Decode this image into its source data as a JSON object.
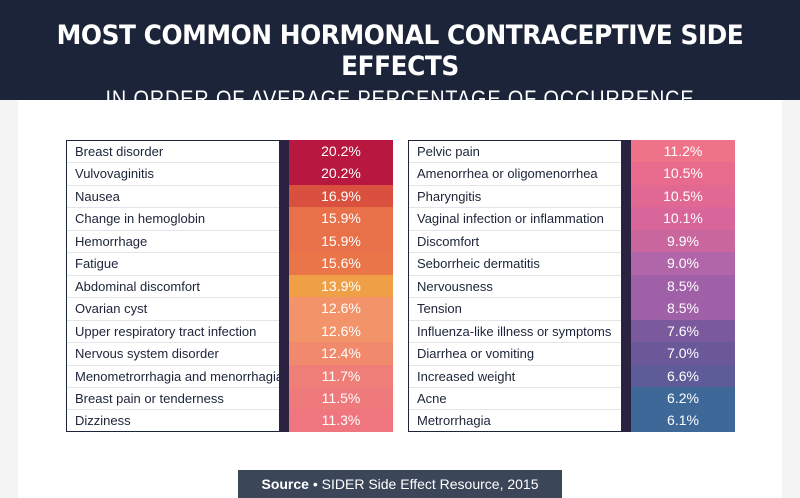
{
  "header": {
    "title": "MOST COMMON HORMONAL CONTRACEPTIVE SIDE EFFECTS",
    "subtitle": "IN ORDER OF AVERAGE PERCENTAGE OF OCCURRENCE"
  },
  "chart_data": {
    "type": "table",
    "title": "MOST COMMON HORMONAL CONTRACEPTIVE SIDE EFFECTS",
    "subtitle": "IN ORDER OF AVERAGE PERCENTAGE OF OCCURRENCE",
    "columns": [
      {
        "rows": [
          {
            "label": "Breast disorder",
            "value": "20.2%",
            "color": "#b8173f"
          },
          {
            "label": "Vulvovaginitis",
            "value": "20.2%",
            "color": "#b8173f"
          },
          {
            "label": "Nausea",
            "value": "16.9%",
            "color": "#d9503f"
          },
          {
            "label": "Change in hemoglobin",
            "value": "15.9%",
            "color": "#e8714a"
          },
          {
            "label": "Hemorrhage",
            "value": "15.9%",
            "color": "#e8714a"
          },
          {
            "label": "Fatigue",
            "value": "15.6%",
            "color": "#ea7549"
          },
          {
            "label": "Abdominal discomfort",
            "value": "13.9%",
            "color": "#efa047"
          },
          {
            "label": "Ovarian cyst",
            "value": "12.6%",
            "color": "#f3936a"
          },
          {
            "label": "Upper respiratory tract infection",
            "value": "12.6%",
            "color": "#f3936a"
          },
          {
            "label": "Nervous system disorder",
            "value": "12.4%",
            "color": "#f18a6c"
          },
          {
            "label": "Menometrorrhagia and menorrhagia",
            "value": "11.7%",
            "color": "#ef7e78"
          },
          {
            "label": "Breast pain or tenderness",
            "value": "11.5%",
            "color": "#ef7a7c"
          },
          {
            "label": "Dizziness",
            "value": "11.3%",
            "color": "#ef767e"
          }
        ]
      },
      {
        "rows": [
          {
            "label": "Pelvic pain",
            "value": "11.2%",
            "color": "#ee7288"
          },
          {
            "label": "Amenorrhea or oligomenorrhea",
            "value": "10.5%",
            "color": "#e86b8e"
          },
          {
            "label": "Pharyngitis",
            "value": "10.5%",
            "color": "#e06892"
          },
          {
            "label": "Vaginal infection or inflammation",
            "value": "10.1%",
            "color": "#d8669a"
          },
          {
            "label": "Discomfort",
            "value": "9.9%",
            "color": "#c9669e"
          },
          {
            "label": "Seborrheic dermatitis",
            "value": "9.0%",
            "color": "#b066a8"
          },
          {
            "label": "Nervousness",
            "value": "8.5%",
            "color": "#a060a8"
          },
          {
            "label": "Tension",
            "value": "8.5%",
            "color": "#a060a8"
          },
          {
            "label": "Influenza-like illness or symptoms",
            "value": "7.6%",
            "color": "#7a5a9c"
          },
          {
            "label": "Diarrhea or vomiting",
            "value": "7.0%",
            "color": "#6a5898"
          },
          {
            "label": "Increased weight",
            "value": "6.6%",
            "color": "#5e5c98"
          },
          {
            "label": "Acne",
            "value": "6.2%",
            "color": "#3e6898"
          },
          {
            "label": "Metrorrhagia",
            "value": "6.1%",
            "color": "#3e6898"
          }
        ]
      }
    ]
  },
  "source": {
    "label": "Source",
    "separator": "•",
    "text": "SIDER Side Effect Resource, 2015"
  }
}
